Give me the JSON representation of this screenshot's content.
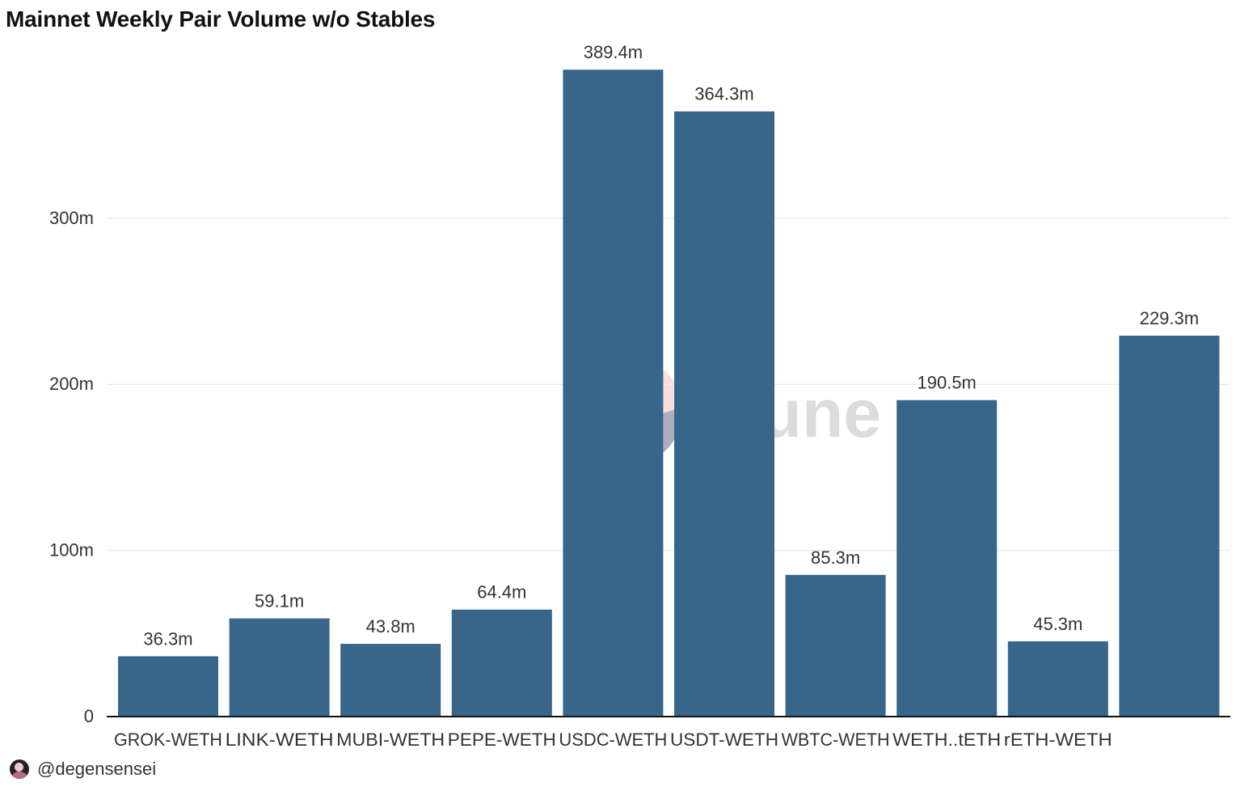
{
  "header": {
    "title": "Mainnet Weekly Pair Volume w/o Stables"
  },
  "watermark": {
    "text": "Dune"
  },
  "footer": {
    "author": "@degensensei"
  },
  "colors": {
    "bar": "#38668a",
    "grid": "#ebebeb",
    "axis": "#111111",
    "text": "#333333"
  },
  "chart_data": {
    "type": "bar",
    "title": "Mainnet Weekly Pair Volume w/o Stables",
    "xlabel": "",
    "ylabel": "",
    "categories": [
      "GROK-WETH",
      "LINK-WETH",
      "MUBI-WETH",
      "PEPE-WETH",
      "USDC-WETH",
      "USDT-WETH",
      "WBTC-WETH",
      "WETH..tETH",
      "rETH-WETH",
      ""
    ],
    "values": [
      36.3,
      59.1,
      43.8,
      64.4,
      389.4,
      364.3,
      85.3,
      190.5,
      45.3,
      229.3
    ],
    "value_labels": [
      "36.3m",
      "59.1m",
      "43.8m",
      "64.4m",
      "389.4m",
      "364.3m",
      "85.3m",
      "190.5m",
      "45.3m",
      "229.3m"
    ],
    "unit": "m",
    "yticks": [
      0,
      100,
      200,
      300
    ],
    "ytick_labels": [
      "0",
      "100m",
      "200m",
      "300m"
    ],
    "ylim": [
      0,
      400
    ],
    "grid": true,
    "legend": "none"
  }
}
